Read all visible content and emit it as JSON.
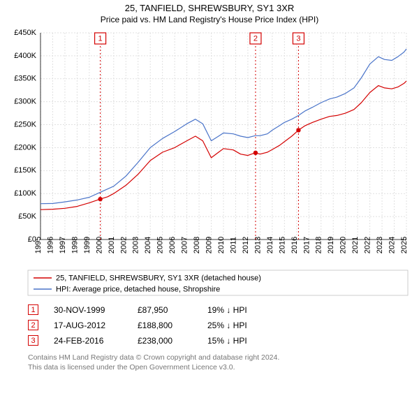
{
  "title": "25, TANFIELD, SHREWSBURY, SY1 3XR",
  "subtitle": "Price paid vs. HM Land Registry's House Price Index (HPI)",
  "chart": {
    "type": "line",
    "background_color": "#ffffff",
    "grid_color": "#e0e0e0",
    "axis_color": "#000000",
    "x": {
      "min": 1995,
      "max": 2025,
      "ticks": [
        1995,
        1996,
        1997,
        1998,
        1999,
        2000,
        2001,
        2002,
        2003,
        2004,
        2005,
        2006,
        2007,
        2008,
        2009,
        2010,
        2011,
        2012,
        2013,
        2014,
        2015,
        2016,
        2017,
        2018,
        2019,
        2020,
        2021,
        2022,
        2023,
        2024,
        2025
      ]
    },
    "y": {
      "min": 0,
      "max": 450000,
      "tick_step": 50000,
      "tick_labels": [
        "£0",
        "£50K",
        "£100K",
        "£150K",
        "£200K",
        "£250K",
        "£300K",
        "£350K",
        "£400K",
        "£450K"
      ],
      "label_fontsize": 11
    },
    "series": [
      {
        "name": "25, TANFIELD, SHREWSBURY, SY1 3XR (detached house)",
        "color": "#d40000",
        "data": [
          [
            1995.0,
            65000
          ],
          [
            1996.0,
            66000
          ],
          [
            1997.0,
            68000
          ],
          [
            1998.0,
            72000
          ],
          [
            1999.0,
            80000
          ],
          [
            1999.9,
            87950
          ],
          [
            2000.5,
            93000
          ],
          [
            2001.0,
            100000
          ],
          [
            2002.0,
            118000
          ],
          [
            2003.0,
            142000
          ],
          [
            2004.0,
            172000
          ],
          [
            2005.0,
            190000
          ],
          [
            2006.0,
            200000
          ],
          [
            2007.0,
            215000
          ],
          [
            2007.7,
            225000
          ],
          [
            2008.3,
            215000
          ],
          [
            2009.0,
            178000
          ],
          [
            2009.6,
            190000
          ],
          [
            2010.0,
            198000
          ],
          [
            2010.8,
            195000
          ],
          [
            2011.4,
            186000
          ],
          [
            2012.0,
            183000
          ],
          [
            2012.6,
            188800
          ],
          [
            2013.0,
            186000
          ],
          [
            2013.6,
            190000
          ],
          [
            2014.0,
            196000
          ],
          [
            2014.6,
            205000
          ],
          [
            2015.0,
            213000
          ],
          [
            2015.6,
            225000
          ],
          [
            2016.15,
            238000
          ],
          [
            2016.7,
            248000
          ],
          [
            2017.3,
            255000
          ],
          [
            2018.0,
            262000
          ],
          [
            2018.7,
            268000
          ],
          [
            2019.3,
            270000
          ],
          [
            2020.0,
            275000
          ],
          [
            2020.7,
            283000
          ],
          [
            2021.3,
            298000
          ],
          [
            2022.0,
            320000
          ],
          [
            2022.7,
            335000
          ],
          [
            2023.2,
            330000
          ],
          [
            2023.8,
            328000
          ],
          [
            2024.3,
            332000
          ],
          [
            2024.8,
            340000
          ],
          [
            2025.0,
            345000
          ]
        ]
      },
      {
        "name": "HPI: Average price, detached house, Shropshire",
        "color": "#4a74c9",
        "data": [
          [
            1995.0,
            78000
          ],
          [
            1996.0,
            78500
          ],
          [
            1997.0,
            82000
          ],
          [
            1998.0,
            86000
          ],
          [
            1999.0,
            92000
          ],
          [
            2000.0,
            104000
          ],
          [
            2001.0,
            116000
          ],
          [
            2002.0,
            138000
          ],
          [
            2003.0,
            168000
          ],
          [
            2004.0,
            200000
          ],
          [
            2005.0,
            220000
          ],
          [
            2006.0,
            235000
          ],
          [
            2007.0,
            252000
          ],
          [
            2007.7,
            262000
          ],
          [
            2008.3,
            252000
          ],
          [
            2009.0,
            215000
          ],
          [
            2009.6,
            225000
          ],
          [
            2010.0,
            232000
          ],
          [
            2010.8,
            230000
          ],
          [
            2011.4,
            225000
          ],
          [
            2012.0,
            222000
          ],
          [
            2012.6,
            226000
          ],
          [
            2013.0,
            226000
          ],
          [
            2013.6,
            230000
          ],
          [
            2014.0,
            238000
          ],
          [
            2014.6,
            248000
          ],
          [
            2015.0,
            255000
          ],
          [
            2015.6,
            262000
          ],
          [
            2016.15,
            270000
          ],
          [
            2016.7,
            280000
          ],
          [
            2017.3,
            288000
          ],
          [
            2018.0,
            298000
          ],
          [
            2018.7,
            306000
          ],
          [
            2019.3,
            310000
          ],
          [
            2020.0,
            318000
          ],
          [
            2020.7,
            330000
          ],
          [
            2021.3,
            352000
          ],
          [
            2022.0,
            382000
          ],
          [
            2022.7,
            398000
          ],
          [
            2023.2,
            392000
          ],
          [
            2023.8,
            390000
          ],
          [
            2024.3,
            398000
          ],
          [
            2024.8,
            408000
          ],
          [
            2025.0,
            415000
          ]
        ]
      }
    ],
    "markers": [
      {
        "n": "1",
        "year": 1999.9,
        "color": "#d40000",
        "point_y": 87950
      },
      {
        "n": "2",
        "year": 2012.63,
        "color": "#d40000",
        "point_y": 188800
      },
      {
        "n": "3",
        "year": 2016.15,
        "color": "#d40000",
        "point_y": 238000
      }
    ],
    "legend": {
      "border_color": "#c0c0c0",
      "fontsize": 11,
      "items": [
        {
          "color": "#d40000",
          "label": "25, TANFIELD, SHREWSBURY, SY1 3XR (detached house)"
        },
        {
          "color": "#4a74c9",
          "label": "HPI: Average price, detached house, Shropshire"
        }
      ]
    }
  },
  "sales": [
    {
      "n": "1",
      "date": "30-NOV-1999",
      "price": "£87,950",
      "diff": "19% ↓ HPI",
      "color": "#d40000"
    },
    {
      "n": "2",
      "date": "17-AUG-2012",
      "price": "£188,800",
      "diff": "25% ↓ HPI",
      "color": "#d40000"
    },
    {
      "n": "3",
      "date": "24-FEB-2016",
      "price": "£238,000",
      "diff": "15% ↓ HPI",
      "color": "#d40000"
    }
  ],
  "footer": {
    "line1": "Contains HM Land Registry data © Crown copyright and database right 2024.",
    "line2": "This data is licensed under the Open Government Licence v3.0.",
    "color": "#777777",
    "fontsize": 10.5
  }
}
